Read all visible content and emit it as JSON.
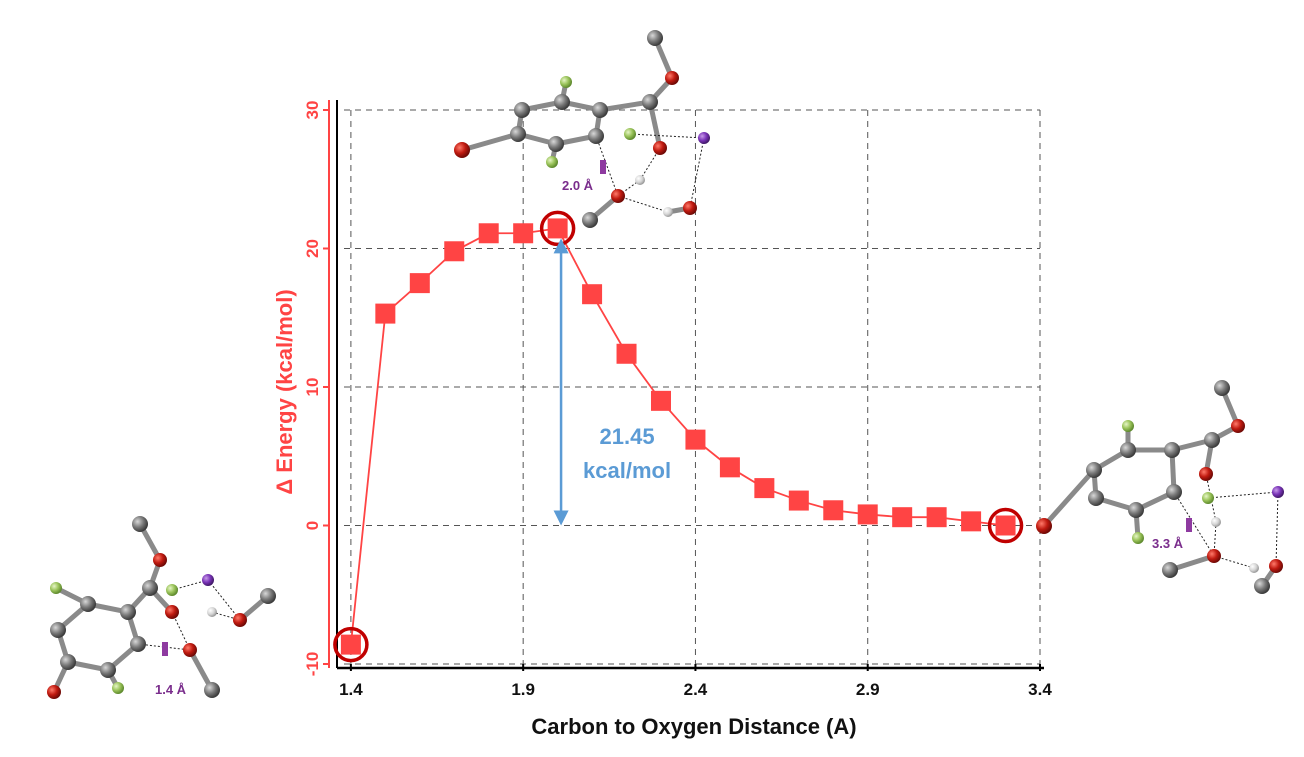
{
  "chart_data": {
    "type": "line",
    "xlabel": "Carbon to Oxygen Distance (A)",
    "ylabel": "Δ Energy (kcal/mol)",
    "xlim": [
      1.38,
      3.4
    ],
    "ylim": [
      -10,
      30
    ],
    "x_ticks": [
      "1.4",
      "1.9",
      "2.4",
      "2.9",
      "3.4"
    ],
    "y_ticks": [
      "-10",
      "0",
      "10",
      "20",
      "30"
    ],
    "grid": true,
    "series": [
      {
        "x": [
          1.4,
          1.5,
          1.6,
          1.7,
          1.8,
          1.9,
          2.0,
          2.1,
          2.2,
          2.3,
          2.4,
          2.5,
          2.6,
          2.7,
          2.8,
          2.9,
          3.0,
          3.1,
          3.2,
          3.3
        ],
        "y": [
          -8.6,
          15.3,
          17.5,
          19.8,
          21.1,
          21.1,
          21.45,
          16.7,
          12.4,
          9.0,
          6.2,
          4.2,
          2.7,
          1.8,
          1.1,
          0.8,
          0.6,
          0.6,
          0.3,
          0.0
        ],
        "color": "#ff4444"
      }
    ],
    "highlighted_points": [
      {
        "x": 1.4,
        "y": -8.6
      },
      {
        "x": 2.0,
        "y": 21.45
      },
      {
        "x": 3.3,
        "y": 0.0
      }
    ],
    "annotation": {
      "line1": "21.45",
      "line2": "kcal/mol",
      "x": 2.01,
      "y_from": 0,
      "y_to": 21.45
    },
    "structures": [
      {
        "distance_label": "1.4 Å"
      },
      {
        "distance_label": "2.0 Å"
      },
      {
        "distance_label": "3.3 Å"
      }
    ]
  }
}
